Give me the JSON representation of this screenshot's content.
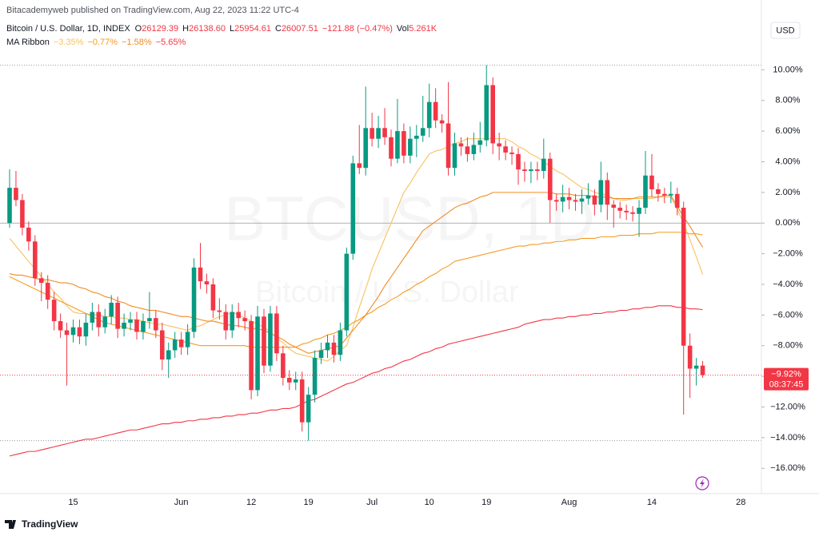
{
  "header": {
    "byline": "Bitacademyweb published on TradingView.com, Aug 22, 2023 11:22 UTC-4",
    "symbol": "Bitcoin / U.S. Dollar, 1D, INDEX",
    "ohlc": [
      {
        "label": "O",
        "value": "26129.39"
      },
      {
        "label": "H",
        "value": "26138.60"
      },
      {
        "label": "L",
        "value": "25954.61"
      },
      {
        "label": "C",
        "value": "26007.51"
      }
    ],
    "change": "−121.88 (−0.47%)",
    "volume": {
      "label": "Vol",
      "value": "5.261K"
    },
    "indicator": "MA Ribbon"
  },
  "currency_button": "USD",
  "watermark": {
    "symbol": "BTCUSD, 1D",
    "name": "Bitcoin / U.S. Dollar"
  },
  "footer": {
    "brand": "TradingView"
  },
  "chart_data": {
    "type": "candlestick",
    "categories": [
      null,
      null,
      null,
      null,
      null,
      null,
      null,
      null,
      null,
      null,
      "15",
      null,
      null,
      null,
      null,
      null,
      null,
      null,
      null,
      null,
      null,
      null,
      null,
      null,
      null,
      null,
      null,
      "Jun",
      null,
      null,
      null,
      null,
      null,
      null,
      null,
      null,
      null,
      null,
      "12",
      null,
      null,
      null,
      null,
      null,
      null,
      null,
      null,
      "19",
      null,
      null,
      null,
      null,
      null,
      null,
      null,
      null,
      null,
      "Jul",
      null,
      null,
      null,
      null,
      null,
      null,
      null,
      null,
      "10",
      null,
      null,
      null,
      null,
      null,
      null,
      null,
      null,
      "19",
      null,
      null,
      null,
      null,
      null,
      null,
      null,
      null,
      null,
      null,
      null,
      null,
      "Aug",
      null,
      null,
      null,
      null,
      null,
      null,
      null,
      null,
      null,
      null,
      null,
      null,
      "14",
      null,
      null,
      null,
      null,
      null,
      null,
      null,
      null,
      null,
      null,
      null,
      null,
      null,
      "28"
    ],
    "open": [
      0,
      2.3,
      1.5,
      -0.3,
      -1.2,
      -3.6,
      -3.9,
      -5.0,
      -6.4,
      -7.0,
      -7.3,
      -6.8,
      -7.4,
      -6.5,
      -5.8,
      -6.8,
      -6.1,
      -5.2,
      -6.9,
      -6.5,
      -6.3,
      -7.1,
      -6.4,
      -6.2,
      -7.0,
      -8.9,
      -8.3,
      -7.6,
      -8.1,
      -7.1,
      -2.9,
      -3.8,
      -4.0,
      -5.7,
      -5.8,
      -7.0,
      -5.8,
      -6.2,
      -6.4,
      -10.9,
      -6.1,
      -9.3,
      -5.9,
      -8.5,
      -10.1,
      -10.4,
      -10.2,
      -13.0,
      -11.2,
      -8.8,
      -8.3,
      -7.8,
      -8.6,
      -7.0,
      -2.0,
      3.9,
      3.6,
      6.2,
      5.5,
      6.2,
      5.6,
      4.2,
      6.0,
      4.4,
      5.5,
      5.7,
      6.2,
      7.9,
      6.7,
      6.5,
      3.6,
      5.2,
      5.0,
      4.5,
      5.1,
      5.4,
      9.0,
      5.2,
      5.0,
      4.6,
      4.5,
      3.5,
      3.4,
      3.5,
      3.4,
      4.2,
      1.5,
      1.4,
      1.7,
      1.5,
      1.4,
      1.6,
      1.8,
      1.2,
      2.8,
      1.2,
      1.0,
      0.8,
      0.7,
      0.6,
      1.0,
      3.1,
      2.2,
      1.9,
      1.8,
      1.9,
      1.0,
      -8.0,
      -9.5,
      -9.3,
      null,
      null,
      null,
      null,
      null,
      null
    ],
    "high": [
      3.5,
      3.4,
      1.9,
      0.1,
      -0.8,
      -3.2,
      -3.4,
      -4.5,
      -5.9,
      -6.5,
      -6.3,
      -6.3,
      -5.9,
      -5.2,
      -5.3,
      -5.6,
      -4.7,
      -4.8,
      -5.9,
      -5.8,
      -5.8,
      -5.9,
      -4.5,
      -5.7,
      -6.5,
      -7.8,
      -7.1,
      -7.1,
      -6.6,
      -2.3,
      -1.3,
      -3.3,
      -3.6,
      -4.9,
      -5.3,
      -5.3,
      -5.2,
      -5.7,
      -6.0,
      -5.4,
      -5.6,
      -5.4,
      -5.4,
      -8.0,
      -9.6,
      -9.7,
      -9.7,
      -10.7,
      -8.3,
      -7.8,
      -7.3,
      -7.3,
      -6.5,
      -1.6,
      4.4,
      6.4,
      8.9,
      7.2,
      7.0,
      7.5,
      6.1,
      8.1,
      6.5,
      6.3,
      6.4,
      8.3,
      9.1,
      8.8,
      7.1,
      9.2,
      5.9,
      5.6,
      5.6,
      5.9,
      6.6,
      10.3,
      9.5,
      5.9,
      5.4,
      5.0,
      4.9,
      4.0,
      4.0,
      4.0,
      5.5,
      4.6,
      1.9,
      2.5,
      2.3,
      1.9,
      2.2,
      2.6,
      2.2,
      4.0,
      3.3,
      1.5,
      1.4,
      1.2,
      1.1,
      1.5,
      4.7,
      4.5,
      2.6,
      2.3,
      2.7,
      2.3,
      1.4,
      -7.2,
      -8.8,
      -9.0,
      null,
      null,
      null,
      null,
      null,
      null
    ],
    "low": [
      -0.3,
      1.1,
      -0.8,
      -1.8,
      -4.1,
      -5.1,
      -5.6,
      -7.0,
      -7.5,
      -10.6,
      -7.8,
      -7.9,
      -8.0,
      -7.0,
      -7.4,
      -7.2,
      -6.6,
      -7.5,
      -7.4,
      -7.0,
      -7.6,
      -7.6,
      -6.9,
      -7.5,
      -9.6,
      -10.1,
      -8.8,
      -8.6,
      -8.6,
      -7.5,
      -4.3,
      -4.6,
      -6.2,
      -6.3,
      -7.6,
      -7.5,
      -6.8,
      -7.0,
      -11.5,
      -11.3,
      -9.8,
      -9.7,
      -9.0,
      -10.6,
      -10.9,
      -10.9,
      -13.6,
      -14.2,
      -11.7,
      -9.2,
      -8.8,
      -9.1,
      -9.0,
      -7.4,
      -2.4,
      3.2,
      3.1,
      5.0,
      4.9,
      5.1,
      3.7,
      3.9,
      3.9,
      3.9,
      4.3,
      5.3,
      5.6,
      6.2,
      5.9,
      3.1,
      3.1,
      4.4,
      4.0,
      4.1,
      4.6,
      5.0,
      4.5,
      4.1,
      4.1,
      3.8,
      2.5,
      2.7,
      2.6,
      2.8,
      2.9,
      0,
      0.8,
      0.7,
      0.9,
      0.8,
      0.6,
      1.2,
      0.5,
      0.7,
      0.2,
      -0.3,
      0.3,
      0.2,
      0.1,
      -0.9,
      0.6,
      1.7,
      1.4,
      1.3,
      1.3,
      0.5,
      -12.5,
      -11.4,
      -10.6,
      -10.1,
      null,
      null,
      null,
      null,
      null,
      null
    ],
    "close": [
      2.3,
      1.5,
      -0.3,
      -1.2,
      -3.6,
      -3.9,
      -5.0,
      -6.4,
      -7.0,
      -7.3,
      -6.8,
      -7.4,
      -6.5,
      -5.8,
      -6.8,
      -6.1,
      -5.2,
      -6.9,
      -6.5,
      -6.3,
      -7.1,
      -6.4,
      -6.2,
      -7.0,
      -8.9,
      -8.3,
      -7.6,
      -8.1,
      -7.1,
      -2.9,
      -3.8,
      -4.0,
      -5.7,
      -5.8,
      -7.0,
      -5.8,
      -6.2,
      -6.4,
      -10.9,
      -6.1,
      -9.3,
      -5.9,
      -8.5,
      -10.1,
      -10.4,
      -10.2,
      -13.0,
      -11.2,
      -8.8,
      -8.3,
      -7.8,
      -8.6,
      -7.0,
      -2.0,
      3.9,
      3.6,
      6.2,
      5.5,
      6.2,
      5.6,
      4.2,
      6.0,
      4.4,
      5.5,
      5.7,
      6.2,
      7.9,
      6.7,
      6.5,
      3.6,
      5.2,
      5.0,
      4.5,
      5.1,
      5.4,
      9.0,
      5.2,
      5.0,
      4.6,
      4.5,
      3.5,
      3.4,
      3.5,
      3.4,
      4.2,
      1.5,
      1.4,
      1.7,
      1.5,
      1.4,
      1.6,
      1.8,
      1.2,
      2.8,
      1.2,
      1.0,
      0.8,
      0.7,
      0.6,
      1.0,
      3.1,
      2.2,
      1.9,
      1.8,
      1.9,
      1.0,
      -8.0,
      -9.5,
      -9.3,
      -9.92,
      null,
      null,
      null,
      null,
      null,
      null
    ],
    "up_color": "#089981",
    "down_color": "#f23645",
    "series": [
      {
        "legend_label": "−3.35%",
        "color": "#f7c25c",
        "values": [
          -1,
          -1.5,
          -2,
          -2.5,
          -3,
          -3.5,
          -4,
          -4.5,
          -4.9,
          -5.4,
          -5.8,
          -5.9,
          -5.9,
          -6,
          -6,
          -6.1,
          -6.1,
          -6.2,
          -6.2,
          -6.3,
          -6.3,
          -6.4,
          -6.5,
          -6.6,
          -6.6,
          -6.7,
          -6.8,
          -6.9,
          -7,
          -6.8,
          -6.7,
          -6.5,
          -6.3,
          -6.1,
          -6,
          -5.8,
          -6,
          -6.2,
          -6.4,
          -6.6,
          -6.8,
          -7.1,
          -7.5,
          -7.8,
          -8.2,
          -8.5,
          -8.6,
          -8.7,
          -8.8,
          -8.9,
          -9,
          -8.7,
          -8.3,
          -8,
          -6.8,
          -5.5,
          -4.3,
          -3,
          -2,
          -1,
          0,
          1,
          2,
          2.6,
          3.3,
          3.9,
          4.5,
          4.7,
          4.8,
          5,
          5.2,
          5.3,
          5.5,
          5.5,
          5.5,
          5.5,
          5.5,
          5.5,
          5.5,
          5.3,
          5,
          4.8,
          4.5,
          4.3,
          4,
          3.7,
          3.4,
          3.2,
          2.9,
          2.6,
          2.3,
          2.2,
          2,
          1.9,
          1.8,
          1.6,
          1.5,
          1.5,
          1.6,
          1.6,
          1.6,
          1.6,
          1.7,
          1.7,
          1.7,
          0.9,
          0,
          -1.1,
          -2.2,
          -3.35,
          null,
          null,
          null,
          null,
          null,
          null
        ]
      },
      {
        "legend_label": "−0.77%",
        "color": "#f59b1f",
        "values": [
          -3.5,
          -3.7,
          -3.9,
          -4.1,
          -4.3,
          -4.5,
          -4.7,
          -4.9,
          -5.1,
          -5.3,
          -5.5,
          -5.7,
          -5.9,
          -6.1,
          -6.3,
          -6.5,
          -6.6,
          -6.7,
          -6.8,
          -6.9,
          -7,
          -7.1,
          -7.2,
          -7.3,
          -7.4,
          -7.5,
          -7.6,
          -7.7,
          -7.8,
          -7.9,
          -8,
          -8,
          -8,
          -8,
          -8,
          -8,
          -8,
          -8,
          -8.1,
          -8.1,
          -8.1,
          -8.1,
          -8.1,
          -8.1,
          -8.1,
          -8.1,
          -7.9,
          -7.8,
          -7.6,
          -7.5,
          -7.3,
          -7.2,
          -7,
          -6.8,
          -6.5,
          -6.3,
          -6,
          -5.8,
          -5.5,
          -5.3,
          -5,
          -4.8,
          -4.5,
          -4.3,
          -4,
          -3.8,
          -3.5,
          -3.3,
          -3,
          -2.8,
          -2.5,
          -2.4,
          -2.3,
          -2.2,
          -2.1,
          -2,
          -1.9,
          -1.8,
          -1.7,
          -1.6,
          -1.5,
          -1.5,
          -1.4,
          -1.4,
          -1.3,
          -1.3,
          -1.2,
          -1.2,
          -1.1,
          -1.1,
          -1,
          -1,
          -1,
          -0.9,
          -0.9,
          -0.9,
          -0.8,
          -0.8,
          -0.8,
          -0.7,
          -0.7,
          -0.7,
          -0.6,
          -0.6,
          -0.6,
          -0.6,
          -0.6,
          -0.7,
          -0.7,
          -0.77,
          null,
          null,
          null,
          null,
          null,
          null
        ]
      },
      {
        "legend_label": "−1.58%",
        "color": "#f08a24",
        "values": [
          -3.3,
          -3.4,
          -3.4,
          -3.5,
          -3.6,
          -3.7,
          -3.7,
          -3.8,
          -3.9,
          -3.9,
          -4,
          -4.2,
          -4.3,
          -4.5,
          -4.6,
          -4.8,
          -4.9,
          -5.1,
          -5.2,
          -5.4,
          -5.5,
          -5.6,
          -5.7,
          -5.7,
          -5.8,
          -5.9,
          -6,
          -6.1,
          -6.1,
          -6.2,
          -6.3,
          -6.4,
          -6.4,
          -6.5,
          -6.6,
          -6.7,
          -6.7,
          -6.8,
          -6.9,
          -6.9,
          -7,
          -7.2,
          -7.4,
          -7.6,
          -7.9,
          -8.1,
          -8.3,
          -8.5,
          -8.4,
          -8.3,
          -8.2,
          -8.1,
          -8,
          -7.5,
          -7,
          -6.5,
          -6,
          -5.4,
          -4.8,
          -4.1,
          -3.5,
          -2.9,
          -2.3,
          -1.7,
          -1.1,
          -0.5,
          -0.2,
          0.1,
          0.4,
          0.7,
          1,
          1.2,
          1.3,
          1.5,
          1.7,
          1.8,
          2,
          2,
          2,
          2,
          2,
          2,
          2,
          2,
          2,
          2,
          1.9,
          1.9,
          1.9,
          1.8,
          1.8,
          1.8,
          1.7,
          1.7,
          1.7,
          1.6,
          1.6,
          1.6,
          1.6,
          1.7,
          1.7,
          1.7,
          1.7,
          1.8,
          1.8,
          1.1,
          0.4,
          -0.2,
          -0.9,
          -1.58,
          null,
          null,
          null,
          null,
          null,
          null
        ]
      },
      {
        "legend_label": "−5.65%",
        "color": "#f23645",
        "values": [
          -15.2,
          -15.1,
          -15,
          -14.9,
          -14.9,
          -14.8,
          -14.7,
          -14.6,
          -14.5,
          -14.4,
          -14.3,
          -14.2,
          -14.1,
          -14.1,
          -14,
          -13.9,
          -13.8,
          -13.7,
          -13.6,
          -13.5,
          -13.5,
          -13.4,
          -13.3,
          -13.2,
          -13.1,
          -13.1,
          -13,
          -13,
          -12.9,
          -12.9,
          -12.8,
          -12.8,
          -12.7,
          -12.7,
          -12.6,
          -12.6,
          -12.5,
          -12.5,
          -12.4,
          -12.4,
          -12.3,
          -12.2,
          -12.2,
          -12.1,
          -12.1,
          -12,
          -11.8,
          -11.6,
          -11.5,
          -11.3,
          -11.1,
          -10.9,
          -10.7,
          -10.5,
          -10.4,
          -10.2,
          -10,
          -9.8,
          -9.7,
          -9.5,
          -9.4,
          -9.2,
          -9,
          -8.9,
          -8.7,
          -8.5,
          -8.4,
          -8.2,
          -8.1,
          -7.9,
          -7.8,
          -7.7,
          -7.6,
          -7.5,
          -7.4,
          -7.3,
          -7.2,
          -7.1,
          -7,
          -6.9,
          -6.8,
          -6.6,
          -6.5,
          -6.4,
          -6.3,
          -6.3,
          -6.2,
          -6.2,
          -6.1,
          -6.1,
          -6,
          -6,
          -5.9,
          -5.9,
          -5.8,
          -5.8,
          -5.7,
          -5.7,
          -5.6,
          -5.6,
          -5.5,
          -5.5,
          -5.4,
          -5.4,
          -5.4,
          -5.5,
          -5.5,
          -5.6,
          -5.6,
          -5.65,
          null,
          null,
          null,
          null,
          null,
          null
        ]
      }
    ],
    "last_label": "−9.92%",
    "countdown": "08:37:45",
    "ylim": [
      -17.5,
      12
    ],
    "yticks": [
      {
        "value": 10,
        "label": "10.00%"
      },
      {
        "value": 8,
        "label": "8.00%"
      },
      {
        "value": 6,
        "label": "6.00%"
      },
      {
        "value": 4,
        "label": "4.00%"
      },
      {
        "value": 2,
        "label": "2.00%"
      },
      {
        "value": 0,
        "label": "0.00%"
      },
      {
        "value": -2,
        "label": "−2.00%"
      },
      {
        "value": -4,
        "label": "−4.00%"
      },
      {
        "value": -6,
        "label": "−6.00%"
      },
      {
        "value": -8,
        "label": "−8.00%"
      },
      {
        "value": -10,
        "label": "−10.00%"
      },
      {
        "value": -12,
        "label": "−12.00%"
      },
      {
        "value": -14,
        "label": "−14.00%"
      },
      {
        "value": -16,
        "label": "−16.00%"
      }
    ],
    "grid": false
  }
}
